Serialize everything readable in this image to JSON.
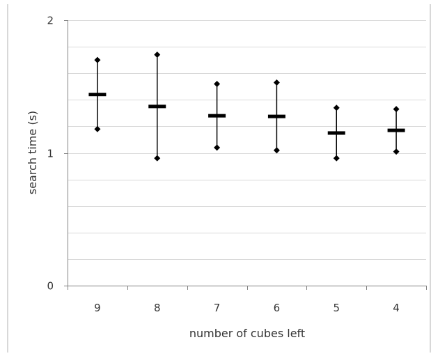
{
  "chart_data": {
    "type": "hi-lo-mean",
    "title": "",
    "xlabel": "number of cubes left",
    "ylabel": "search time (s)",
    "ylim": [
      0,
      2
    ],
    "yticks": [
      0,
      1,
      2
    ],
    "minor_grid_step": 0.2,
    "grid": true,
    "categories": [
      "9",
      "8",
      "7",
      "6",
      "5",
      "4"
    ],
    "series": [
      {
        "mean": [
          1.44,
          1.35,
          1.28,
          1.275,
          1.15,
          1.17
        ],
        "high": [
          1.7,
          1.74,
          1.52,
          1.53,
          1.34,
          1.33
        ],
        "low": [
          1.18,
          0.96,
          1.04,
          1.02,
          0.96,
          1.01
        ]
      }
    ],
    "colors": {
      "marks": "#000000",
      "grid": "#d9d9d9",
      "axis": "#808080",
      "text": "#333333"
    }
  }
}
